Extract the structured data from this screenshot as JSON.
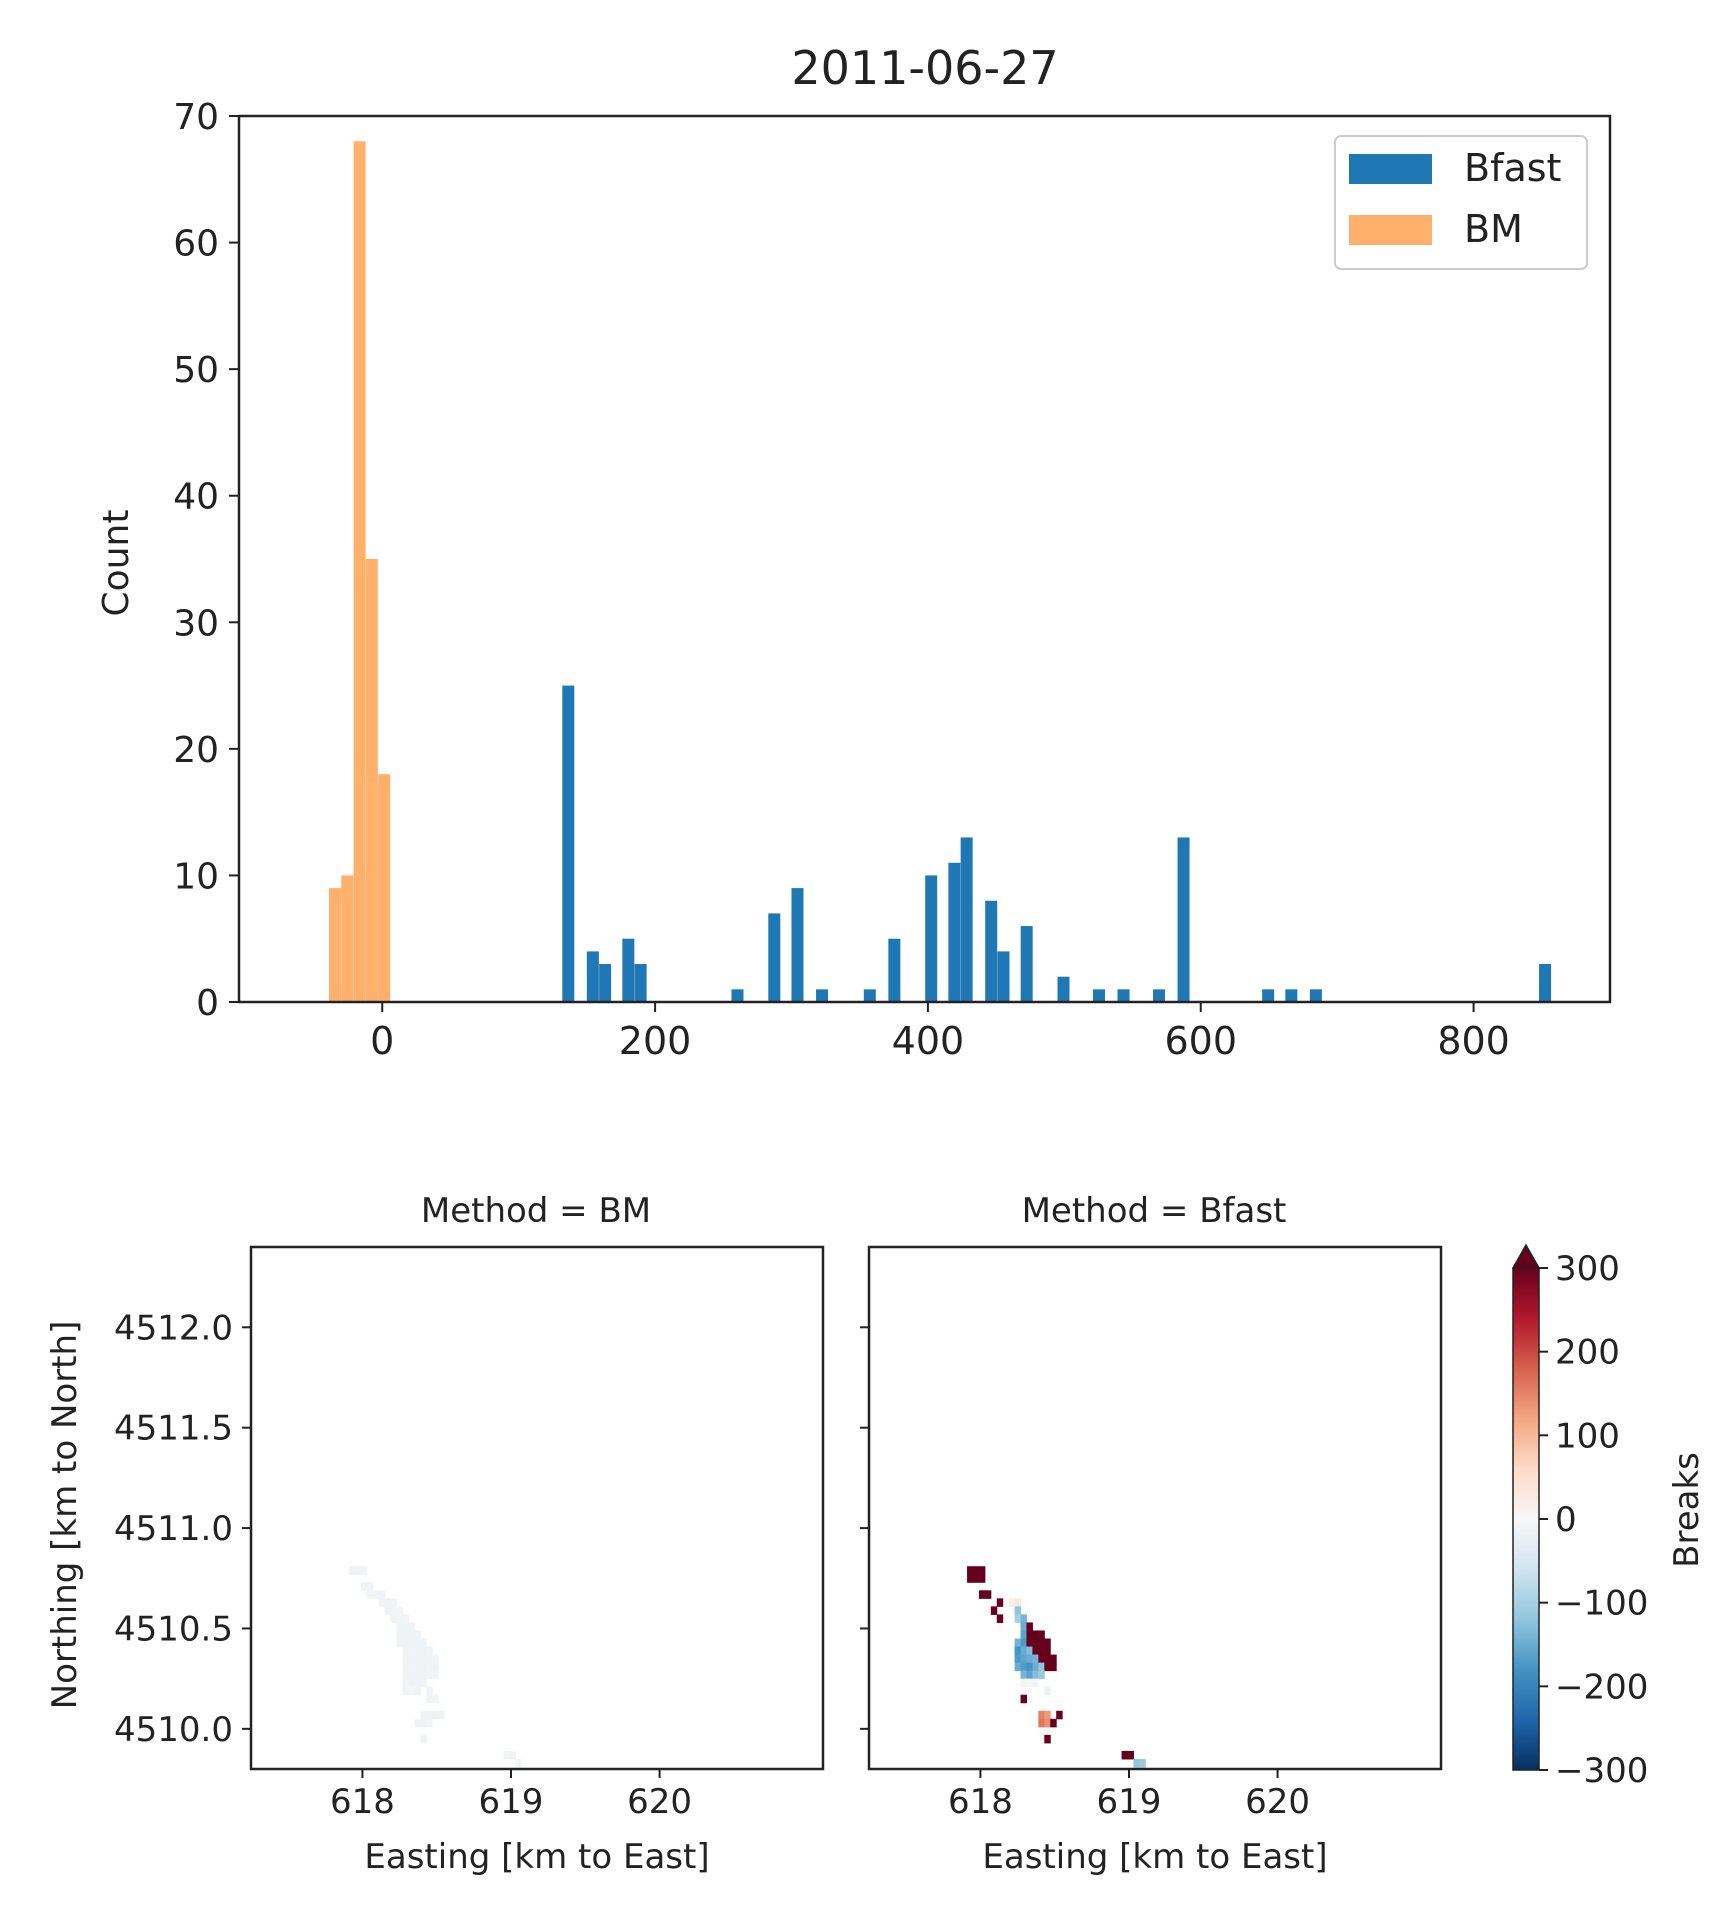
{
  "chart_data": [
    {
      "type": "bar",
      "title": "2011-06-27",
      "xlabel": "",
      "ylabel": "Count",
      "xlim": [
        -105,
        900
      ],
      "ylim": [
        0,
        70
      ],
      "xticks": [
        0,
        200,
        400,
        600,
        800
      ],
      "yticks": [
        0,
        10,
        20,
        30,
        40,
        50,
        60,
        70
      ],
      "legend": {
        "position": "top-right"
      },
      "series": [
        {
          "name": "Bfast",
          "color": "#1f77b4",
          "bin_width": 8.8,
          "bins": [
            {
              "x": 132,
              "count": 25
            },
            {
              "x": 150,
              "count": 4
            },
            {
              "x": 159,
              "count": 3
            },
            {
              "x": 176,
              "count": 5
            },
            {
              "x": 185,
              "count": 3
            },
            {
              "x": 256,
              "count": 1
            },
            {
              "x": 283,
              "count": 7
            },
            {
              "x": 300,
              "count": 9
            },
            {
              "x": 318,
              "count": 1
            },
            {
              "x": 353,
              "count": 1
            },
            {
              "x": 371,
              "count": 5
            },
            {
              "x": 398,
              "count": 10
            },
            {
              "x": 415,
              "count": 11
            },
            {
              "x": 424,
              "count": 13
            },
            {
              "x": 442,
              "count": 8
            },
            {
              "x": 451,
              "count": 4
            },
            {
              "x": 468,
              "count": 6
            },
            {
              "x": 495,
              "count": 2
            },
            {
              "x": 521,
              "count": 1
            },
            {
              "x": 539,
              "count": 1
            },
            {
              "x": 565,
              "count": 1
            },
            {
              "x": 583,
              "count": 13
            },
            {
              "x": 645,
              "count": 1
            },
            {
              "x": 662,
              "count": 1
            },
            {
              "x": 680,
              "count": 1
            },
            {
              "x": 848,
              "count": 3
            }
          ]
        },
        {
          "name": "BM",
          "color": "#ffb06b",
          "bin_width": 8.8,
          "bins": [
            {
              "x": -39,
              "count": 9
            },
            {
              "x": -30,
              "count": 10
            },
            {
              "x": -21,
              "count": 68
            },
            {
              "x": -12,
              "count": 35
            },
            {
              "x": -3,
              "count": 18
            }
          ]
        }
      ]
    },
    {
      "type": "heatmap",
      "suptitle_left": "Method = BM",
      "suptitle_right": "Method = Bfast",
      "xlabel": "Easting [km to East]",
      "ylabel": "Northing [km to North]",
      "xlim": [
        617.25,
        621.1
      ],
      "ylim": [
        4509.8,
        4512.4
      ],
      "xticks": [
        "618",
        "619",
        "620"
      ],
      "yticks": [
        "4510.0",
        "4510.5",
        "4511.0",
        "4511.5",
        "4512.0"
      ],
      "colorbar": {
        "label": "Breaks",
        "range": [
          -300,
          300
        ],
        "extend": "max",
        "ticks": [
          "300",
          "200",
          "100",
          "0",
          "−100",
          "−200",
          "−300"
        ]
      },
      "cell_size_km": 0.04,
      "panels": [
        {
          "name": "BM",
          "cells": [
            {
              "x": 617.91,
              "y": 4510.77,
              "v": -12
            },
            {
              "x": 617.95,
              "y": 4510.77,
              "v": -12
            },
            {
              "x": 617.99,
              "y": 4510.77,
              "v": -12
            },
            {
              "x": 617.99,
              "y": 4510.69,
              "v": -10
            },
            {
              "x": 618.03,
              "y": 4510.69,
              "v": -10
            },
            {
              "x": 618.03,
              "y": 4510.65,
              "v": -8
            },
            {
              "x": 618.07,
              "y": 4510.65,
              "v": -8
            },
            {
              "x": 618.11,
              "y": 4510.65,
              "v": -10
            },
            {
              "x": 618.11,
              "y": 4510.61,
              "v": -10
            },
            {
              "x": 618.15,
              "y": 4510.61,
              "v": -12
            },
            {
              "x": 618.19,
              "y": 4510.61,
              "v": -10
            },
            {
              "x": 618.15,
              "y": 4510.57,
              "v": -12
            },
            {
              "x": 618.19,
              "y": 4510.57,
              "v": -10
            },
            {
              "x": 618.23,
              "y": 4510.57,
              "v": -8
            },
            {
              "x": 618.19,
              "y": 4510.53,
              "v": -12
            },
            {
              "x": 618.23,
              "y": 4510.53,
              "v": -10
            },
            {
              "x": 618.27,
              "y": 4510.53,
              "v": -8
            },
            {
              "x": 618.23,
              "y": 4510.49,
              "v": -12
            },
            {
              "x": 618.27,
              "y": 4510.49,
              "v": -10
            },
            {
              "x": 618.31,
              "y": 4510.49,
              "v": -12
            },
            {
              "x": 618.23,
              "y": 4510.45,
              "v": -10
            },
            {
              "x": 618.27,
              "y": 4510.45,
              "v": -14
            },
            {
              "x": 618.31,
              "y": 4510.45,
              "v": -12
            },
            {
              "x": 618.35,
              "y": 4510.45,
              "v": -10
            },
            {
              "x": 618.23,
              "y": 4510.41,
              "v": -12
            },
            {
              "x": 618.27,
              "y": 4510.41,
              "v": -10
            },
            {
              "x": 618.31,
              "y": 4510.41,
              "v": -14
            },
            {
              "x": 618.35,
              "y": 4510.41,
              "v": -12
            },
            {
              "x": 618.39,
              "y": 4510.41,
              "v": -10
            },
            {
              "x": 618.27,
              "y": 4510.37,
              "v": -12
            },
            {
              "x": 618.31,
              "y": 4510.37,
              "v": -10
            },
            {
              "x": 618.35,
              "y": 4510.37,
              "v": -12
            },
            {
              "x": 618.39,
              "y": 4510.37,
              "v": -14
            },
            {
              "x": 618.43,
              "y": 4510.37,
              "v": -10
            },
            {
              "x": 618.27,
              "y": 4510.33,
              "v": -10
            },
            {
              "x": 618.31,
              "y": 4510.33,
              "v": -12
            },
            {
              "x": 618.35,
              "y": 4510.33,
              "v": -10
            },
            {
              "x": 618.39,
              "y": 4510.33,
              "v": -12
            },
            {
              "x": 618.43,
              "y": 4510.33,
              "v": -12
            },
            {
              "x": 618.47,
              "y": 4510.33,
              "v": -10
            },
            {
              "x": 618.27,
              "y": 4510.29,
              "v": -12
            },
            {
              "x": 618.31,
              "y": 4510.29,
              "v": -10
            },
            {
              "x": 618.35,
              "y": 4510.29,
              "v": -14
            },
            {
              "x": 618.39,
              "y": 4510.29,
              "v": -12
            },
            {
              "x": 618.43,
              "y": 4510.29,
              "v": -10
            },
            {
              "x": 618.47,
              "y": 4510.29,
              "v": -12
            },
            {
              "x": 618.27,
              "y": 4510.25,
              "v": -10
            },
            {
              "x": 618.31,
              "y": 4510.25,
              "v": -12
            },
            {
              "x": 618.35,
              "y": 4510.25,
              "v": -10
            },
            {
              "x": 618.39,
              "y": 4510.25,
              "v": -12
            },
            {
              "x": 618.43,
              "y": 4510.25,
              "v": -10
            },
            {
              "x": 618.47,
              "y": 4510.25,
              "v": -8
            },
            {
              "x": 618.27,
              "y": 4510.21,
              "v": -8
            },
            {
              "x": 618.31,
              "y": 4510.21,
              "v": -12
            },
            {
              "x": 618.35,
              "y": 4510.21,
              "v": -10
            },
            {
              "x": 618.39,
              "y": 4510.21,
              "v": -10
            },
            {
              "x": 618.27,
              "y": 4510.17,
              "v": -10
            },
            {
              "x": 618.31,
              "y": 4510.17,
              "v": -8
            },
            {
              "x": 618.35,
              "y": 4510.17,
              "v": -12
            },
            {
              "x": 618.43,
              "y": 4510.17,
              "v": -10
            },
            {
              "x": 618.43,
              "y": 4510.13,
              "v": -12
            },
            {
              "x": 618.47,
              "y": 4510.13,
              "v": -10
            },
            {
              "x": 618.39,
              "y": 4510.05,
              "v": -14
            },
            {
              "x": 618.43,
              "y": 4510.05,
              "v": -12
            },
            {
              "x": 618.47,
              "y": 4510.05,
              "v": -12
            },
            {
              "x": 618.51,
              "y": 4510.05,
              "v": -10
            },
            {
              "x": 618.35,
              "y": 4510.01,
              "v": -12
            },
            {
              "x": 618.39,
              "y": 4510.01,
              "v": -12
            },
            {
              "x": 618.43,
              "y": 4510.01,
              "v": -10
            },
            {
              "x": 618.39,
              "y": 4509.93,
              "v": -10
            },
            {
              "x": 618.95,
              "y": 4509.85,
              "v": -8
            },
            {
              "x": 618.99,
              "y": 4509.85,
              "v": -10
            },
            {
              "x": 619.03,
              "y": 4509.81,
              "v": -8
            }
          ]
        },
        {
          "name": "Bfast",
          "cells": [
            {
              "x": 617.91,
              "y": 4510.77,
              "v": 420
            },
            {
              "x": 617.95,
              "y": 4510.77,
              "v": 420
            },
            {
              "x": 617.99,
              "y": 4510.77,
              "v": 420
            },
            {
              "x": 617.91,
              "y": 4510.73,
              "v": 420
            },
            {
              "x": 617.95,
              "y": 4510.73,
              "v": 410
            },
            {
              "x": 617.99,
              "y": 4510.73,
              "v": 420
            },
            {
              "x": 617.99,
              "y": 4510.65,
              "v": 400
            },
            {
              "x": 618.03,
              "y": 4510.65,
              "v": 420
            },
            {
              "x": 618.11,
              "y": 4510.61,
              "v": 380
            },
            {
              "x": 618.19,
              "y": 4510.61,
              "v": 20
            },
            {
              "x": 618.23,
              "y": 4510.61,
              "v": 30
            },
            {
              "x": 618.07,
              "y": 4510.57,
              "v": 400
            },
            {
              "x": 618.23,
              "y": 4510.57,
              "v": -120
            },
            {
              "x": 618.11,
              "y": 4510.53,
              "v": 400
            },
            {
              "x": 618.23,
              "y": 4510.53,
              "v": -100
            },
            {
              "x": 618.27,
              "y": 4510.53,
              "v": -140
            },
            {
              "x": 618.27,
              "y": 4510.49,
              "v": -150
            },
            {
              "x": 618.31,
              "y": 4510.49,
              "v": 430
            },
            {
              "x": 618.27,
              "y": 4510.45,
              "v": -160
            },
            {
              "x": 618.31,
              "y": 4510.45,
              "v": 440
            },
            {
              "x": 618.35,
              "y": 4510.45,
              "v": 420
            },
            {
              "x": 618.39,
              "y": 4510.45,
              "v": 410
            },
            {
              "x": 618.23,
              "y": 4510.41,
              "v": -140
            },
            {
              "x": 618.27,
              "y": 4510.41,
              "v": -170
            },
            {
              "x": 618.31,
              "y": 4510.41,
              "v": 420
            },
            {
              "x": 618.35,
              "y": 4510.41,
              "v": 430
            },
            {
              "x": 618.39,
              "y": 4510.41,
              "v": 420
            },
            {
              "x": 618.43,
              "y": 4510.41,
              "v": 410
            },
            {
              "x": 618.23,
              "y": 4510.37,
              "v": -180
            },
            {
              "x": 618.27,
              "y": 4510.37,
              "v": -150
            },
            {
              "x": 618.31,
              "y": 4510.37,
              "v": -130
            },
            {
              "x": 618.35,
              "y": 4510.37,
              "v": 420
            },
            {
              "x": 618.39,
              "y": 4510.37,
              "v": 430
            },
            {
              "x": 618.43,
              "y": 4510.37,
              "v": 420
            },
            {
              "x": 618.23,
              "y": 4510.33,
              "v": -170
            },
            {
              "x": 618.27,
              "y": 4510.33,
              "v": -160
            },
            {
              "x": 618.31,
              "y": 4510.33,
              "v": -150
            },
            {
              "x": 618.35,
              "y": 4510.33,
              "v": -140
            },
            {
              "x": 618.39,
              "y": 4510.33,
              "v": 420
            },
            {
              "x": 618.43,
              "y": 4510.33,
              "v": 430
            },
            {
              "x": 618.47,
              "y": 4510.33,
              "v": 410
            },
            {
              "x": 618.23,
              "y": 4510.29,
              "v": -150
            },
            {
              "x": 618.27,
              "y": 4510.29,
              "v": -170
            },
            {
              "x": 618.31,
              "y": 4510.29,
              "v": -180
            },
            {
              "x": 618.35,
              "y": 4510.29,
              "v": -150
            },
            {
              "x": 618.39,
              "y": 4510.29,
              "v": -120
            },
            {
              "x": 618.43,
              "y": 4510.29,
              "v": 420
            },
            {
              "x": 618.47,
              "y": 4510.29,
              "v": 410
            },
            {
              "x": 618.27,
              "y": 4510.25,
              "v": -140
            },
            {
              "x": 618.31,
              "y": 4510.25,
              "v": -160
            },
            {
              "x": 618.35,
              "y": 4510.25,
              "v": -130
            },
            {
              "x": 618.39,
              "y": 4510.25,
              "v": -110
            },
            {
              "x": 618.27,
              "y": 4510.21,
              "v": 10
            },
            {
              "x": 618.31,
              "y": 4510.21,
              "v": 5
            },
            {
              "x": 618.35,
              "y": 4510.21,
              "v": -10
            },
            {
              "x": 618.43,
              "y": 4510.17,
              "v": -20
            },
            {
              "x": 618.27,
              "y": 4510.13,
              "v": 400
            },
            {
              "x": 618.39,
              "y": 4510.05,
              "v": 150
            },
            {
              "x": 618.43,
              "y": 4510.05,
              "v": 130
            },
            {
              "x": 618.51,
              "y": 4510.05,
              "v": 410
            },
            {
              "x": 618.39,
              "y": 4510.01,
              "v": 160
            },
            {
              "x": 618.43,
              "y": 4510.01,
              "v": 140
            },
            {
              "x": 618.47,
              "y": 4510.01,
              "v": 400
            },
            {
              "x": 618.43,
              "y": 4509.93,
              "v": 410
            },
            {
              "x": 618.95,
              "y": 4509.85,
              "v": 420
            },
            {
              "x": 618.99,
              "y": 4509.85,
              "v": 410
            },
            {
              "x": 619.03,
              "y": 4509.81,
              "v": -120
            },
            {
              "x": 619.07,
              "y": 4509.81,
              "v": -110
            }
          ]
        }
      ]
    }
  ]
}
